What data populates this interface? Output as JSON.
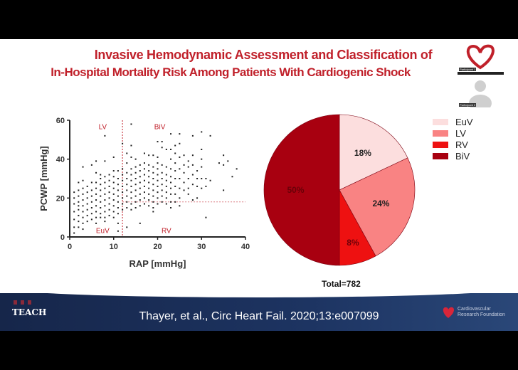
{
  "slide": {
    "title_line1": "Invasive Hemodynamic Assessment and Classification of",
    "title_line2": "In-Hospital Mortality Risk Among Patients With Cardiogenic Shock"
  },
  "footer": {
    "citation": "Thayer, et al., Circ Heart Fail. 2020;13:e007099",
    "left_logo": "TEACH",
    "right_logo": "Cardiovascular Research Foundation"
  },
  "participants": [
    {
      "name": "Participant 1"
    },
    {
      "name": "Participant 2"
    }
  ],
  "chart_data": [
    {
      "type": "scatter",
      "xlabel": "RAP [mmHg]",
      "ylabel": "PCWP [mmHg]",
      "xlim": [
        0,
        40
      ],
      "ylim": [
        0,
        60
      ],
      "xticks": [
        "0",
        "10",
        "20",
        "30",
        "40"
      ],
      "yticks": [
        "0",
        "20",
        "40",
        "60"
      ],
      "thresholds": {
        "rap": 12,
        "pcwp": 18
      },
      "quadrant_labels": {
        "lv": "LV",
        "biv": "BiV",
        "euv": "EuV",
        "rv": "RV"
      },
      "color_points": "#222222",
      "color_labels": "#c0202a",
      "columns": [
        {
          "rap": 1,
          "pcwp": [
            2,
            5,
            9,
            13,
            17,
            20,
            23
          ]
        },
        {
          "rap": 2,
          "pcwp": [
            5,
            8,
            11,
            14,
            16,
            18,
            21,
            24,
            28
          ]
        },
        {
          "rap": 3,
          "pcwp": [
            4,
            7,
            10,
            13,
            16,
            19,
            22,
            25,
            29,
            36
          ]
        },
        {
          "rap": 4,
          "pcwp": [
            8,
            11,
            14,
            17,
            20,
            23,
            26
          ]
        },
        {
          "rap": 5,
          "pcwp": [
            9,
            12,
            15,
            18,
            21,
            24,
            28,
            37
          ]
        },
        {
          "rap": 6,
          "pcwp": [
            7,
            10,
            13,
            16,
            19,
            22,
            25,
            28,
            33,
            39
          ]
        },
        {
          "rap": 7,
          "pcwp": [
            10,
            12,
            15,
            18,
            21,
            24,
            27,
            30,
            32
          ]
        },
        {
          "rap": 8,
          "pcwp": [
            8,
            10,
            13,
            16,
            19,
            22,
            25,
            28,
            31,
            39,
            52
          ]
        },
        {
          "rap": 9,
          "pcwp": [
            11,
            14,
            17,
            20,
            23,
            26,
            29,
            32
          ]
        },
        {
          "rap": 10,
          "pcwp": [
            10,
            13,
            16,
            19,
            22,
            25,
            28,
            31,
            34,
            41
          ]
        },
        {
          "rap": 11,
          "pcwp": [
            3,
            7,
            12,
            15,
            18,
            21,
            24,
            27,
            30,
            34
          ]
        },
        {
          "rap": 12,
          "pcwp": [
            14,
            17,
            20,
            23,
            26,
            29,
            32,
            35,
            48
          ]
        },
        {
          "rap": 13,
          "pcwp": [
            5,
            15,
            18,
            21,
            24,
            27,
            30,
            33,
            38,
            43
          ]
        },
        {
          "rap": 14,
          "pcwp": [
            14,
            17,
            20,
            23,
            26,
            29,
            32,
            35,
            41,
            47,
            58
          ]
        },
        {
          "rap": 15,
          "pcwp": [
            15,
            18,
            21,
            24,
            27,
            30,
            33,
            36,
            40
          ]
        },
        {
          "rap": 16,
          "pcwp": [
            7,
            16,
            19,
            22,
            25,
            28,
            31,
            34,
            37
          ]
        },
        {
          "rap": 17,
          "pcwp": [
            17,
            20,
            23,
            26,
            29,
            32,
            35,
            38,
            43
          ]
        },
        {
          "rap": 18,
          "pcwp": [
            16,
            19,
            22,
            25,
            28,
            31,
            34,
            37,
            42
          ]
        },
        {
          "rap": 19,
          "pcwp": [
            13,
            15,
            18,
            21,
            24,
            27,
            30,
            33,
            36,
            42
          ]
        },
        {
          "rap": 20,
          "pcwp": [
            17,
            20,
            23,
            26,
            29,
            32,
            35,
            38,
            41,
            49
          ]
        },
        {
          "rap": 21,
          "pcwp": [
            18,
            21,
            24,
            27,
            30,
            33,
            37,
            46,
            49
          ]
        },
        {
          "rap": 22,
          "pcwp": [
            17,
            20,
            23,
            26,
            29,
            32,
            36,
            45
          ]
        },
        {
          "rap": 23,
          "pcwp": [
            15,
            18,
            22,
            25,
            28,
            31,
            35,
            40,
            45,
            53
          ]
        },
        {
          "rap": 24,
          "pcwp": [
            18,
            22,
            26,
            30,
            34,
            38,
            43,
            47
          ]
        },
        {
          "rap": 25,
          "pcwp": [
            16,
            20,
            25,
            30,
            35,
            41,
            48,
            53
          ]
        },
        {
          "rap": 26,
          "pcwp": [
            24,
            28,
            33,
            37,
            42
          ]
        },
        {
          "rap": 27,
          "pcwp": [
            22,
            25,
            30,
            36,
            39
          ]
        },
        {
          "rap": 28,
          "pcwp": [
            19,
            27,
            32,
            37,
            42,
            52
          ]
        },
        {
          "rap": 29,
          "pcwp": [
            20,
            26,
            30,
            34
          ]
        },
        {
          "rap": 30,
          "pcwp": [
            25,
            30,
            36,
            40,
            45,
            54
          ]
        },
        {
          "rap": 31,
          "pcwp": [
            10,
            26,
            30
          ]
        },
        {
          "rap": 32,
          "pcwp": [
            29,
            52
          ]
        },
        {
          "rap": 34,
          "pcwp": [
            38
          ]
        },
        {
          "rap": 35,
          "pcwp": [
            24,
            37,
            42
          ]
        },
        {
          "rap": 36,
          "pcwp": [
            39
          ]
        },
        {
          "rap": 37,
          "pcwp": [
            31
          ]
        },
        {
          "rap": 38,
          "pcwp": [
            35
          ]
        }
      ]
    },
    {
      "type": "pie",
      "total_label": "Total=782",
      "slices": [
        {
          "name": "EuV",
          "value": 18,
          "label": "18%",
          "color": "#fcdede"
        },
        {
          "name": "LV",
          "value": 24,
          "label": "24%",
          "color": "#f98383"
        },
        {
          "name": "RV",
          "value": 8,
          "label": "8%",
          "color": "#ee1111"
        },
        {
          "name": "BiV",
          "value": 50,
          "label": "50%",
          "color": "#a80010"
        }
      ],
      "legend_position": "top-right"
    }
  ]
}
